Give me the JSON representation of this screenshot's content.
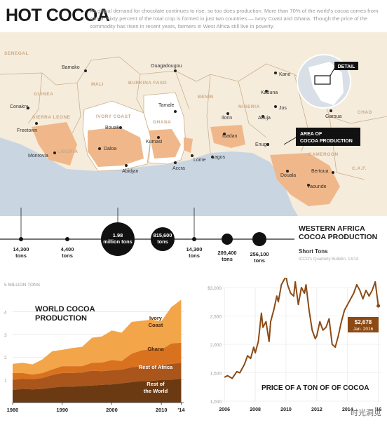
{
  "header": {
    "title": "HOT COCOA",
    "intro": "As global demand for chocolate continues to rise, so too does production. More than 70% of the world's cocoa comes from Africa. Sixty percent of the total crop is formed in just two countries — Ivory Coast and Ghana. Though the price of the commodity has risen in recent years, farmers in West Africa still live in poverty."
  },
  "map": {
    "countries": [
      "SENEGAL",
      "GUINEA",
      "MALI",
      "BURKINA FASO",
      "BENIN",
      "NIGERIA",
      "CHAD",
      "SIERRA LEONE",
      "LIBERIA",
      "IVORY COAST",
      "GHANA",
      "CAMEROON",
      "C.A.F."
    ],
    "cities": [
      "Bamako",
      "Ouagadougou",
      "Kano",
      "Kaduna",
      "Jos",
      "Abuja",
      "Garoua",
      "Conakry",
      "Freetown",
      "Monrovia",
      "Bouake",
      "Daloa",
      "Abidjan",
      "Tamale",
      "Kumasi",
      "Accra",
      "Lome",
      "Ilorin",
      "Ibadan",
      "Lagos",
      "Enugu",
      "Douala",
      "Bertoua",
      "Yaounde"
    ],
    "detail_label": "DETAIL",
    "area_label": "AREA OF\nCOCOA PRODUCTION",
    "colors": {
      "sea": "#c9d6e2",
      "land": "#f6ecdc",
      "cocoa": "#f0b88a",
      "top_producer": "#ffffff",
      "border": "#c9b08e"
    }
  },
  "production": {
    "items": [
      {
        "value": "14,300",
        "unit": "tons"
      },
      {
        "value": "4,400",
        "unit": "tons"
      },
      {
        "value": "1.98",
        "unit": "million tons"
      },
      {
        "value": "815,600",
        "unit": "tons"
      },
      {
        "value": "14,300",
        "unit": "tons"
      },
      {
        "value": "209,400",
        "unit": "tons"
      },
      {
        "value": "256,100",
        "unit": "tons"
      }
    ],
    "title": "WESTERN AFRICA\nCOCOA PRODUCTION",
    "subtitle": "Short Tons",
    "source": "ICCO's Quarterly Bulletin, 13/14"
  },
  "chart_data": [
    {
      "type": "area",
      "title": "WORLD COCOA\nPRODUCTION",
      "ylabel": "5 MILLION TONS",
      "ylim": [
        0,
        5
      ],
      "yticks": [
        "4",
        "3",
        "2",
        "1"
      ],
      "xticks": [
        "1980",
        "1990",
        "2000",
        "2010",
        "'14"
      ],
      "x": [
        1980,
        1982,
        1984,
        1986,
        1988,
        1990,
        1992,
        1994,
        1996,
        1998,
        2000,
        2002,
        2004,
        2006,
        2008,
        2010,
        2012,
        2014
      ],
      "series": [
        {
          "name": "Rest of\nthe World",
          "values": [
            0.55,
            0.6,
            0.58,
            0.6,
            0.66,
            0.7,
            0.7,
            0.72,
            0.75,
            0.78,
            0.8,
            0.85,
            0.9,
            0.95,
            0.95,
            1.0,
            1.0,
            1.05
          ]
        },
        {
          "name": "Rest of Africa",
          "values": [
            0.45,
            0.45,
            0.45,
            0.48,
            0.55,
            0.6,
            0.6,
            0.6,
            0.65,
            0.6,
            0.62,
            0.6,
            0.65,
            0.65,
            0.65,
            0.65,
            0.7,
            0.7
          ]
        },
        {
          "name": "Ghana",
          "values": [
            0.3,
            0.25,
            0.2,
            0.22,
            0.25,
            0.3,
            0.3,
            0.28,
            0.35,
            0.38,
            0.45,
            0.38,
            0.6,
            0.7,
            0.75,
            0.68,
            0.9,
            0.88
          ]
        },
        {
          "name": "Ivory\nCoast",
          "values": [
            0.4,
            0.45,
            0.45,
            0.6,
            0.8,
            0.72,
            0.8,
            0.85,
            1.1,
            1.15,
            1.3,
            1.25,
            1.4,
            1.3,
            1.3,
            1.25,
            1.6,
            1.9
          ]
        }
      ],
      "colors": [
        "#6b3a12",
        "#a9551c",
        "#d9721f",
        "#f3a54a"
      ]
    },
    {
      "type": "line",
      "title": "PRICE OF A TON OF OF COCOA",
      "ylim": [
        1000,
        3000
      ],
      "yticks": [
        "$3,000",
        "2,500",
        "2,000",
        "1,500",
        "1,000"
      ],
      "xticks": [
        "2006",
        "2008",
        "2010",
        "2012",
        "2014",
        "'16"
      ],
      "x": [
        2006.0,
        2006.2,
        2006.5,
        2006.8,
        2007.0,
        2007.3,
        2007.5,
        2007.7,
        2007.9,
        2008.0,
        2008.2,
        2008.4,
        2008.5,
        2008.7,
        2008.9,
        2009.0,
        2009.2,
        2009.4,
        2009.5,
        2009.7,
        2009.9,
        2010.0,
        2010.1,
        2010.3,
        2010.5,
        2010.6,
        2010.8,
        2011.0,
        2011.2,
        2011.3,
        2011.5,
        2011.7,
        2011.9,
        2012.0,
        2012.2,
        2012.4,
        2012.6,
        2012.8,
        2013.0,
        2013.2,
        2013.4,
        2013.6,
        2013.8,
        2014.0,
        2014.2,
        2014.4,
        2014.6,
        2014.8,
        2015.0,
        2015.2,
        2015.4,
        2015.6,
        2015.8,
        2016.0
      ],
      "values": [
        1420,
        1450,
        1400,
        1520,
        1500,
        1650,
        1800,
        1750,
        1950,
        1850,
        2050,
        2550,
        2300,
        2400,
        2050,
        2400,
        2600,
        2850,
        2750,
        3050,
        3150,
        3200,
        3050,
        2900,
        2850,
        3100,
        2700,
        3000,
        2900,
        3050,
        2600,
        2250,
        2100,
        2150,
        2400,
        2250,
        2300,
        2450,
        2000,
        1950,
        2150,
        2400,
        2600,
        2700,
        2800,
        2900,
        3050,
        2950,
        2800,
        2950,
        2850,
        2950,
        3100,
        2678
      ],
      "annotation": {
        "value": "$2,678",
        "date": "Jan. 2016"
      },
      "color": "#8c4a14"
    }
  ],
  "watermark": "时光洞见"
}
